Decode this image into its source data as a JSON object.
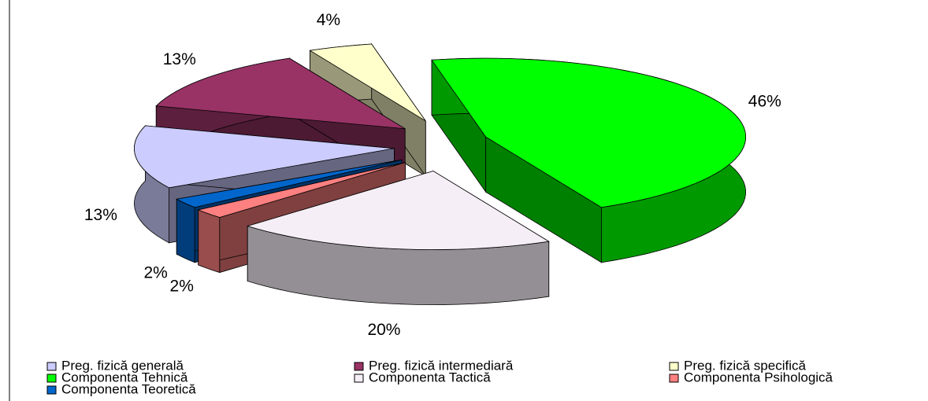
{
  "chart_data": {
    "type": "pie3d",
    "categories": [
      "Preg. fizică generală",
      "Preg. fizică intermediară",
      "Preg. fizică specifică",
      "Componenta Tehnică",
      "Componenta Tactică",
      "Componenta Psihologică",
      "Componenta Teoretică"
    ],
    "values": [
      13,
      13,
      4,
      46,
      20,
      2,
      2
    ],
    "value_labels": [
      "13%",
      "13%",
      "4%",
      "46%",
      "20%",
      "2%",
      "2%"
    ],
    "colors": [
      "#ccccff",
      "#993366",
      "#ffffcc",
      "#00ff00",
      "#f6eef6",
      "#ff8080",
      "#0066cc"
    ],
    "legend": "bottom"
  }
}
